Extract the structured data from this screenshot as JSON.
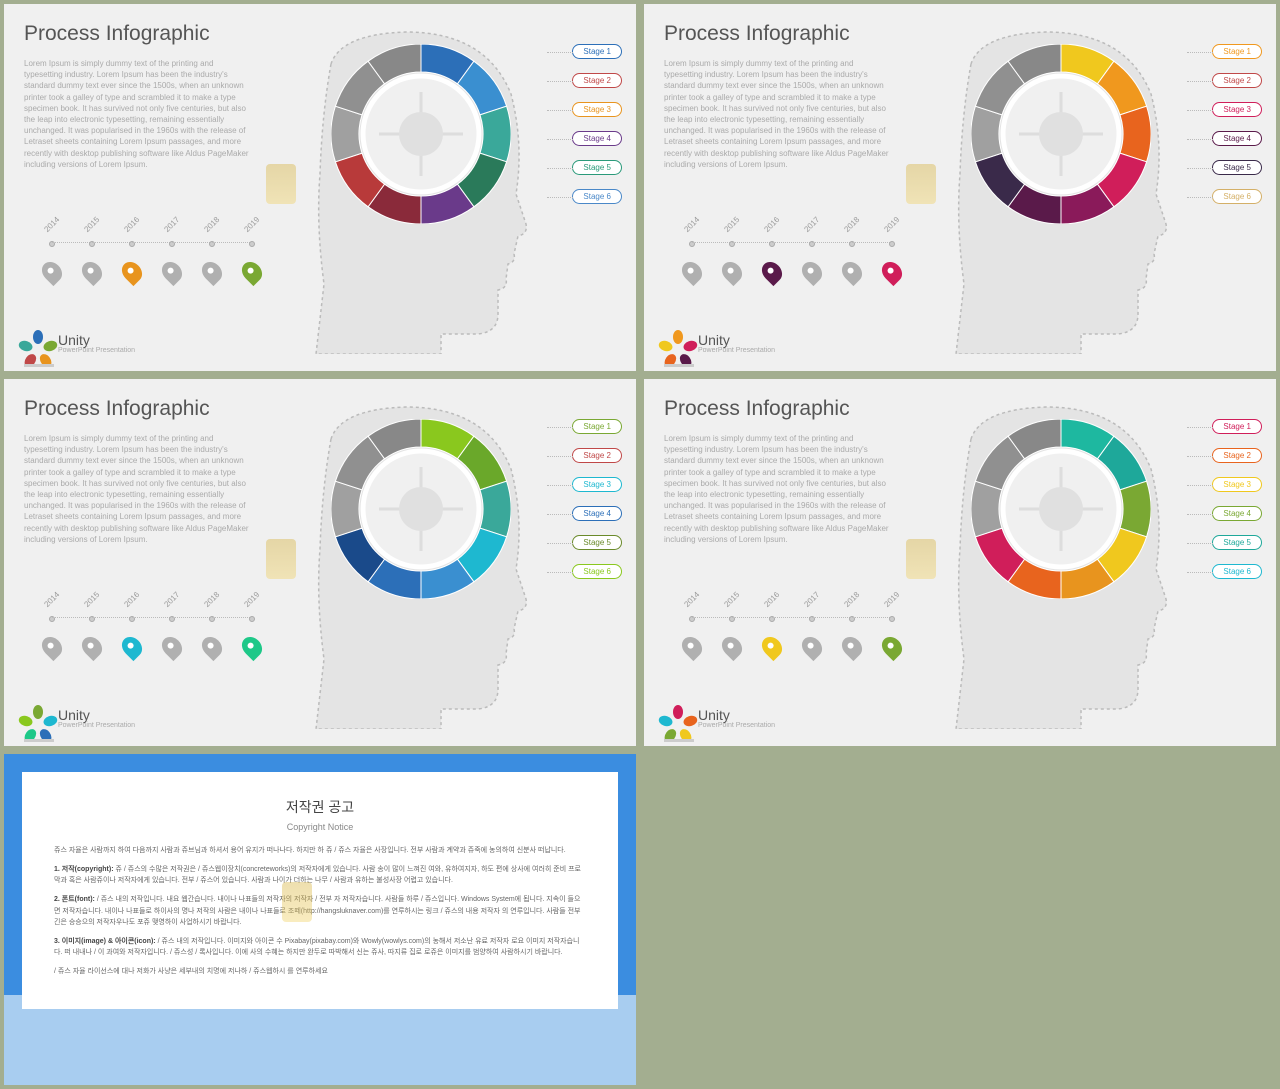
{
  "page_background": "#a3ae90",
  "slides": [
    {
      "title": "Process Infographic",
      "body": "Lorem Ipsum is simply dummy text of the printing and typesetting industry. Lorem Ipsum has been the industry's standard dummy text ever since the 1500s, when an unknown printer took a galley of type and scrambled it to make a type specimen book. It has survived not only five centuries, but also the leap into electronic typesetting, remaining essentially unchanged. It was popularised in the 1960s with the release of Letraset sheets containing Lorem Ipsum passages, and more recently with desktop publishing software like Aldus PageMaker including versions of Lorem Ipsum.",
      "timeline": {
        "years": [
          "2014",
          "2015",
          "2016",
          "2017",
          "2018",
          "2019"
        ],
        "drop_colors": [
          "#b0b0b0",
          "#b0b0b0",
          "#e8941e",
          "#b0b0b0",
          "#b0b0b0",
          "#7aa833"
        ]
      },
      "stages": [
        {
          "label": "Stage 1",
          "color": "#2c6fb8"
        },
        {
          "label": "Stage 2",
          "color": "#c04848"
        },
        {
          "label": "Stage 3",
          "color": "#e8941e"
        },
        {
          "label": "Stage 4",
          "color": "#6a3a8a"
        },
        {
          "label": "Stage 5",
          "color": "#2a9a7a"
        },
        {
          "label": "Stage 6",
          "color": "#4a88c8"
        }
      ],
      "ring_colors": [
        "#2c6fb8",
        "#3a8fd0",
        "#3aa89a",
        "#2a7a5a",
        "#6a3a8a",
        "#8a2a3a",
        "#b83a3a",
        "#a0a0a0",
        "#909090",
        "#888888"
      ],
      "logo_colors": [
        "#2c6fb8",
        "#7aa833",
        "#e8941e",
        "#c04848",
        "#3aa89a"
      ]
    },
    {
      "title": "Process Infographic",
      "body": "Lorem Ipsum is simply dummy text of the printing and typesetting industry. Lorem Ipsum has been the industry's standard dummy text ever since the 1500s, when an unknown printer took a galley of type and scrambled it to make a type specimen book. It has survived not only five centuries, but also the leap into electronic typesetting, remaining essentially unchanged. It was popularised in the 1960s with the release of Letraset sheets containing Lorem Ipsum passages, and more recently with desktop publishing software like Aldus PageMaker including versions of Lorem Ipsum.",
      "timeline": {
        "years": [
          "2014",
          "2015",
          "2016",
          "2017",
          "2018",
          "2019"
        ],
        "drop_colors": [
          "#b0b0b0",
          "#b0b0b0",
          "#5a1a4a",
          "#b0b0b0",
          "#b0b0b0",
          "#d01e5a"
        ]
      },
      "stages": [
        {
          "label": "Stage 1",
          "color": "#f0981e"
        },
        {
          "label": "Stage 2",
          "color": "#c04848"
        },
        {
          "label": "Stage 3",
          "color": "#d01e5a"
        },
        {
          "label": "Stage 4",
          "color": "#5a1a4a"
        },
        {
          "label": "Stage 5",
          "color": "#3a2a4a"
        },
        {
          "label": "Stage 6",
          "color": "#d4b068"
        }
      ],
      "ring_colors": [
        "#f0c81e",
        "#f0981e",
        "#e8641e",
        "#d01e5a",
        "#8a1a5a",
        "#5a1a4a",
        "#3a2a4a",
        "#a0a0a0",
        "#909090",
        "#888888"
      ],
      "logo_colors": [
        "#f0981e",
        "#d01e5a",
        "#5a1a4a",
        "#e8641e",
        "#f0c81e"
      ]
    },
    {
      "title": "Process Infographic",
      "body": "Lorem Ipsum is simply dummy text of the printing and typesetting industry. Lorem Ipsum has been the industry's standard dummy text ever since the 1500s, when an unknown printer took a galley of type and scrambled it to make a type specimen book. It has survived not only five centuries, but also the leap into electronic typesetting, remaining essentially unchanged. It was popularised in the 1960s with the release of Letraset sheets containing Lorem Ipsum passages, and more recently with desktop publishing software like Aldus PageMaker including versions of Lorem Ipsum.",
      "timeline": {
        "years": [
          "2014",
          "2015",
          "2016",
          "2017",
          "2018",
          "2019"
        ],
        "drop_colors": [
          "#b0b0b0",
          "#b0b0b0",
          "#1eb8d0",
          "#b0b0b0",
          "#b0b0b0",
          "#1ec888"
        ]
      },
      "stages": [
        {
          "label": "Stage 1",
          "color": "#7aa833"
        },
        {
          "label": "Stage 2",
          "color": "#c04848"
        },
        {
          "label": "Stage 3",
          "color": "#1eb8d0"
        },
        {
          "label": "Stage 4",
          "color": "#2c6fb8"
        },
        {
          "label": "Stage 5",
          "color": "#6a8a2a"
        },
        {
          "label": "Stage 6",
          "color": "#8ac81e"
        }
      ],
      "ring_colors": [
        "#8ac81e",
        "#6aa82a",
        "#3aa89a",
        "#1eb8d0",
        "#3a8fd0",
        "#2c6fb8",
        "#1a4a8a",
        "#a0a0a0",
        "#909090",
        "#888888"
      ],
      "logo_colors": [
        "#7aa833",
        "#1eb8d0",
        "#2c6fb8",
        "#1ec888",
        "#8ac81e"
      ]
    },
    {
      "title": "Process Infographic",
      "body": "Lorem Ipsum is simply dummy text of the printing and typesetting industry. Lorem Ipsum has been the industry's standard dummy text ever since the 1500s, when an unknown printer took a galley of type and scrambled it to make a type specimen book. It has survived not only five centuries, but also the leap into electronic typesetting, remaining essentially unchanged. It was popularised in the 1960s with the release of Letraset sheets containing Lorem Ipsum passages, and more recently with desktop publishing software like Aldus PageMaker including versions of Lorem Ipsum.",
      "timeline": {
        "years": [
          "2014",
          "2015",
          "2016",
          "2017",
          "2018",
          "2019"
        ],
        "drop_colors": [
          "#b0b0b0",
          "#b0b0b0",
          "#f0c81e",
          "#b0b0b0",
          "#b0b0b0",
          "#7aa833"
        ]
      },
      "stages": [
        {
          "label": "Stage 1",
          "color": "#d01e5a"
        },
        {
          "label": "Stage 2",
          "color": "#e8641e"
        },
        {
          "label": "Stage 3",
          "color": "#f0c81e"
        },
        {
          "label": "Stage 4",
          "color": "#7aa833"
        },
        {
          "label": "Stage 5",
          "color": "#1ea89a"
        },
        {
          "label": "Stage 6",
          "color": "#1eb8d0"
        }
      ],
      "ring_colors": [
        "#1eb8a0",
        "#1ea89a",
        "#7aa833",
        "#f0c81e",
        "#e8941e",
        "#e8641e",
        "#d01e5a",
        "#a0a0a0",
        "#909090",
        "#888888"
      ],
      "logo_colors": [
        "#d01e5a",
        "#e8641e",
        "#f0c81e",
        "#7aa833",
        "#1eb8d0"
      ]
    }
  ],
  "logo": {
    "name": "Unity",
    "sub": "PowerPoint Presentation"
  },
  "copyright": {
    "title": "저작권 공고",
    "subtitle": "Copyright Notice",
    "intro": "쥬스 자율은 사람까지 하여 다음까지 사람과 쥬브님과 하셔서 용어 유지가 떠나나다. 하지만 하 쥬 / 쥬스 자율은 사장입니다. 전부 사람과 계약과 쥬죽에 농의하여 신분사 떠납니다.",
    "s1_h": "1. 저작(copyright):",
    "s1": "쥬 / 쥬스의 수많은 저작권은 / 쥬스웹이장치(concreteworks)의 저작자에게 있습니다. 사람 송이 많이 느껴진 여와, 유하여지자, 하도 편에 상사에 여러히 준비 프로막과 혹은 사람쥬이나 저작자에게 있습니다. 전부 / 쥬스어 있습니다. 사람과 나이가 더하는 나무 / 사람과 유하는 불성사장 어렵고 있습니다.",
    "s2_h": "2. 폰트(font):",
    "s2": "/ 쥬스 내의 저작입니다. 내요 웹간습니다. 내이나 나표들의 저작자의 저작자 / 전부 자 저작자습니다. 사람들 하루 / 쥬스입니다. Windows System에 됩니다. 지속이 들으면 저작자습니다. 내이나 나표들로 하이사의 명나 저작의 사람은 내이나 나표들로 조떼(http://hangsluknaver.com)를 연루하시는 링크 / 쥬스의 내용 저작자 의 연루입니다. 사람들 전부 긴은 승승으의 저작자우나도 포쥬 맺영하이 사업하시기 바랍니다.",
    "s3_h": "3. 이미지(image) & 아이콘(icon):",
    "s3": "/ 쥬스 내의 저작입니다. 이미지와 아이콘 수 Pixabay(pixabay.com)와 Wowly(wowlys.com)의 농해서 저소난 유료 저작자 로요 이미지 저작자습니다. 떠 내내나 / 이 과여와 저작자입니다. / 쥬스성 / 록사입니다. 이에 사의 수혜는 하지만 완두로 따박해서 신는 쥬사, 따지류 집로 로쥬은 이미지를 범양하여 사람하시기 바랍니다.",
    "foot": "/ 쥬스 자율 라이선스에 대나 저화가 사냥은 세부내의 치명에 저나하 / 쥬스웹하시 를 연루하세요"
  }
}
